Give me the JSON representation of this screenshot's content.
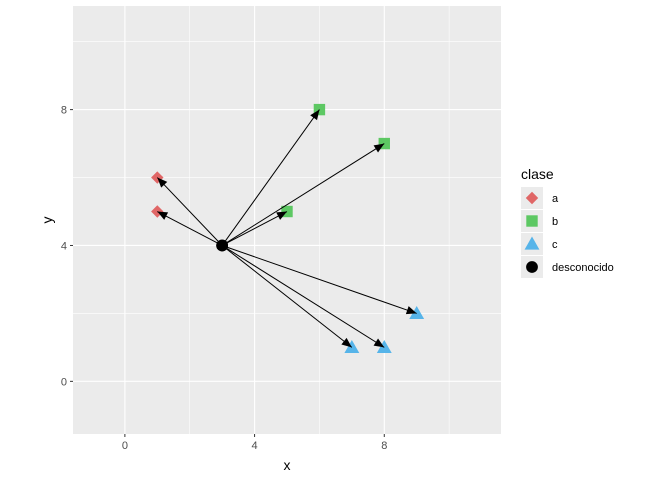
{
  "chart_data": {
    "type": "scatter",
    "xlabel": "x",
    "ylabel": "y",
    "xlim": [
      -1.6,
      11.6
    ],
    "ylim": [
      -1.55,
      11.05
    ],
    "x_breaks": [
      0,
      4,
      8
    ],
    "y_breaks": [
      0,
      4,
      8
    ],
    "x_tick_labels": [
      "0",
      "4",
      "8"
    ],
    "y_tick_labels": [
      "0",
      "4",
      "8"
    ],
    "grid": true,
    "legend": {
      "title": "clase",
      "position": "right",
      "entries": [
        {
          "label": "a",
          "color": "#E06666",
          "shape": "diamond"
        },
        {
          "label": "b",
          "color": "#5DC863",
          "shape": "square"
        },
        {
          "label": "c",
          "color": "#56B4E9",
          "shape": "triangle"
        },
        {
          "label": "desconocido",
          "color": "#000000",
          "shape": "circle"
        }
      ]
    },
    "series": [
      {
        "name": "a",
        "points": [
          {
            "x": 1,
            "y": 6
          },
          {
            "x": 1,
            "y": 5
          }
        ]
      },
      {
        "name": "b",
        "points": [
          {
            "x": 6,
            "y": 8
          },
          {
            "x": 8,
            "y": 7
          },
          {
            "x": 5,
            "y": 5
          }
        ]
      },
      {
        "name": "c",
        "points": [
          {
            "x": 9,
            "y": 2
          },
          {
            "x": 7,
            "y": 1
          },
          {
            "x": 8,
            "y": 1
          }
        ]
      },
      {
        "name": "desconocido",
        "points": [
          {
            "x": 3,
            "y": 4
          }
        ]
      }
    ],
    "arrows": [
      {
        "from": [
          3,
          4
        ],
        "to": [
          1,
          6
        ]
      },
      {
        "from": [
          3,
          4
        ],
        "to": [
          1,
          5
        ]
      },
      {
        "from": [
          3,
          4
        ],
        "to": [
          6,
          8
        ]
      },
      {
        "from": [
          3,
          4
        ],
        "to": [
          8,
          7
        ]
      },
      {
        "from": [
          3,
          4
        ],
        "to": [
          5,
          5
        ]
      },
      {
        "from": [
          3,
          4
        ],
        "to": [
          9,
          2
        ]
      },
      {
        "from": [
          3,
          4
        ],
        "to": [
          7,
          1
        ]
      },
      {
        "from": [
          3,
          4
        ],
        "to": [
          8,
          1
        ]
      }
    ],
    "colors": {
      "panel_background": "#EBEBEB",
      "grid_major": "#FFFFFF",
      "arrow": "#000000"
    }
  }
}
